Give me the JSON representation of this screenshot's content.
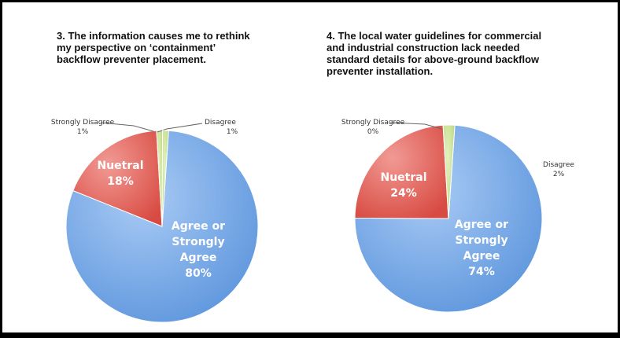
{
  "chart_data": [
    {
      "type": "pie",
      "title": "3. The information causes me to rethink\nmy perspective on ‘containment’\nbackflow preventer placement.",
      "slices": [
        {
          "label": "Agree or\nStrongly\nAgree",
          "value": 80,
          "pct_label": "80%",
          "color": "#8fb8ee",
          "label_inside": true
        },
        {
          "label": "Nuetral",
          "value": 18,
          "pct_label": "18%",
          "color": "#e8706a",
          "label_inside": true
        },
        {
          "label": "Disagree",
          "value": 1,
          "pct_label": "1%",
          "color": "#cfe69a",
          "label_inside": false
        },
        {
          "label": "Strongly Disagree",
          "value": 1,
          "pct_label": "1%",
          "color": "#cfe69a",
          "label_inside": false
        }
      ]
    },
    {
      "type": "pie",
      "title": "4. The local water guidelines for commercial\nand industrial construction lack needed\nstandard details for above-ground backflow\npreventer installation.",
      "slices": [
        {
          "label": "Agree or\nStrongly\nAgree",
          "value": 74,
          "pct_label": "74%",
          "color": "#8fb8ee",
          "label_inside": true
        },
        {
          "label": "Nuetral",
          "value": 24,
          "pct_label": "24%",
          "color": "#e8706a",
          "label_inside": true
        },
        {
          "label": "Disagree",
          "value": 2,
          "pct_label": "2%",
          "color": "#cfe69a",
          "label_inside": false
        },
        {
          "label": "Strongly Disagree",
          "value": 0,
          "pct_label": "0%",
          "color": "#cfe69a",
          "label_inside": false
        }
      ]
    }
  ]
}
